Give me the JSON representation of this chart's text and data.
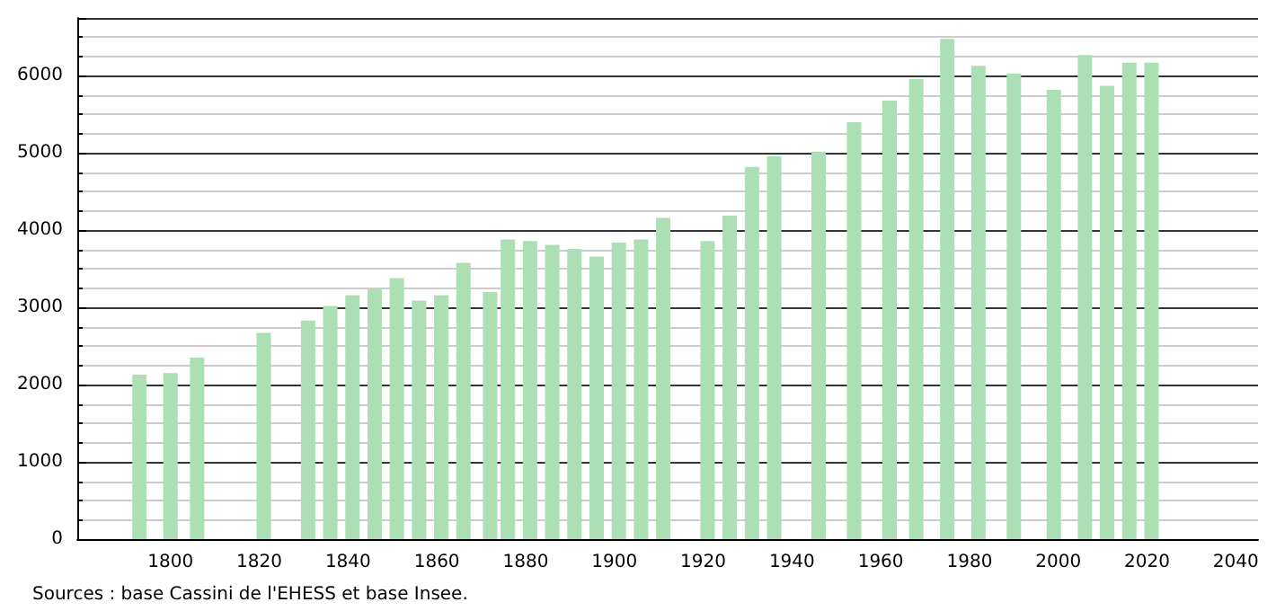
{
  "chart_data": {
    "type": "bar",
    "x": [
      1793,
      1800,
      1806,
      1821,
      1831,
      1836,
      1841,
      1846,
      1851,
      1856,
      1861,
      1866,
      1872,
      1876,
      1881,
      1886,
      1891,
      1896,
      1901,
      1906,
      1911,
      1921,
      1926,
      1931,
      1936,
      1946,
      1954,
      1962,
      1968,
      1975,
      1982,
      1990,
      1999,
      2006,
      2011,
      2016,
      2021
    ],
    "values": [
      2130,
      2150,
      2350,
      2670,
      2830,
      3020,
      3160,
      3240,
      3380,
      3090,
      3160,
      3580,
      3200,
      3880,
      3860,
      3810,
      3760,
      3660,
      3840,
      3880,
      4160,
      3860,
      4190,
      4820,
      4960,
      5020,
      5400,
      5680,
      5960,
      6480,
      6130,
      6030,
      5820,
      6270,
      5870,
      6170,
      6170
    ],
    "color": "#acdfb4",
    "xlim": [
      1779,
      2045
    ],
    "xticks": [
      1800,
      1820,
      1840,
      1860,
      1880,
      1900,
      1920,
      1940,
      1960,
      1980,
      2000,
      2020,
      2040
    ],
    "ylim": [
      0,
      6750
    ],
    "yticks": [
      0,
      1000,
      2000,
      3000,
      4000,
      5000,
      6000
    ],
    "grid": "y",
    "annotations": [
      "Sources : base Cassini de l'EHESS et base Insee."
    ]
  }
}
